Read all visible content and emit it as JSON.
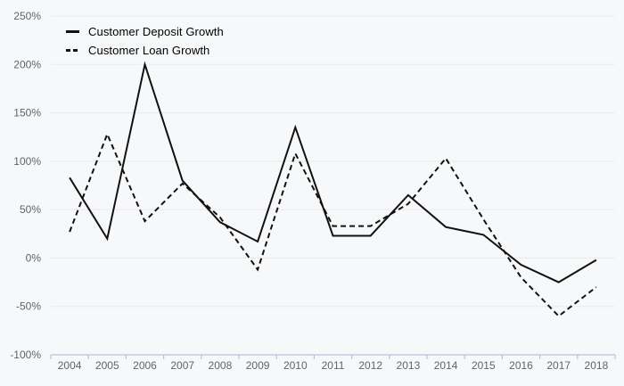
{
  "chart_data": {
    "type": "line",
    "title": "",
    "categories": [
      "2004",
      "2005",
      "2006",
      "2007",
      "2008",
      "2009",
      "2010",
      "2011",
      "2012",
      "2013",
      "2014",
      "2015",
      "2016",
      "2017",
      "2018"
    ],
    "series": [
      {
        "name": "Customer Deposit Growth",
        "line_style": "solid",
        "values": [
          83,
          20,
          200,
          80,
          37,
          17,
          135,
          23,
          23,
          65,
          32,
          24,
          -7,
          -25,
          -2
        ]
      },
      {
        "name": "Customer Loan Growth",
        "line_style": "dashed",
        "values": [
          27,
          128,
          38,
          77,
          42,
          -12,
          108,
          33,
          33,
          56,
          103,
          40,
          -20,
          -60,
          -30
        ]
      }
    ],
    "xlabel": "",
    "ylabel": "",
    "ylim": [
      -100,
      250
    ],
    "yticks": [
      250,
      200,
      150,
      100,
      50,
      0,
      -50,
      -100
    ],
    "ytick_labels": [
      "250%",
      "200%",
      "150%",
      "100%",
      "50%",
      "0%",
      "-50%",
      "-100%"
    ],
    "grid": true,
    "legend_position": "top-left"
  },
  "colors": {
    "background": "#f7f8f9",
    "line": "#111111",
    "gridline": "#e9eaec",
    "axis": "#b9c2d6",
    "tick_label": "#5f646b",
    "legend_text": "#1b1b1b"
  }
}
